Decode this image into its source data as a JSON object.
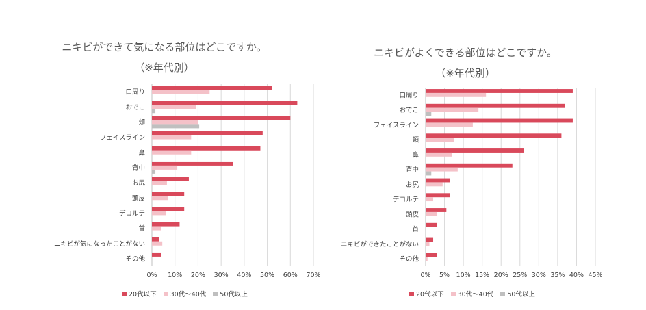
{
  "chart_data": [
    {
      "type": "bar",
      "orientation": "horizontal",
      "title": "ニキビができて気になる部位はどこですか。",
      "subtitle": "（※年代別）",
      "categories": [
        "口周り",
        "おでこ",
        "頬",
        "フェイスライン",
        "鼻",
        "背中",
        "お尻",
        "頭皮",
        "デコルテ",
        "首",
        "ニキビが気になったことがない",
        "その他"
      ],
      "series": [
        {
          "name": "20代以下",
          "color": "#d9495b",
          "values": [
            52,
            63,
            60,
            48,
            47,
            35,
            16,
            14,
            14,
            12,
            3,
            4
          ]
        },
        {
          "name": "30代～40代",
          "color": "#f4c1c8",
          "values": [
            25,
            19,
            20,
            17,
            17,
            11,
            6.5,
            7,
            6,
            4,
            4.5,
            0
          ]
        },
        {
          "name": "50代以上",
          "color": "#bfbfbf",
          "values": [
            0,
            1.5,
            20.5,
            0,
            0,
            1.5,
            0,
            0,
            0,
            0,
            0,
            0
          ]
        }
      ],
      "xticks": [
        "0%",
        "10%",
        "20%",
        "30%",
        "40%",
        "50%",
        "60%",
        "70%"
      ],
      "xlim": [
        0,
        70
      ],
      "grid": true,
      "legend": "bottom"
    },
    {
      "type": "bar",
      "orientation": "horizontal",
      "title": "ニキビがよくできる部位はどこですか。",
      "subtitle": "（※年代別）",
      "categories": [
        "口周り",
        "おでこ",
        "フェイスライン",
        "頬",
        "鼻",
        "背中",
        "お尻",
        "デコルテ",
        "頭皮",
        "首",
        "ニキビができたことがない",
        "その他"
      ],
      "series": [
        {
          "name": "20代以下",
          "color": "#d9495b",
          "values": [
            39,
            37,
            39,
            36,
            26,
            23,
            6.5,
            6.5,
            5.5,
            3,
            2,
            3
          ]
        },
        {
          "name": "30代～40代",
          "color": "#f4c1c8",
          "values": [
            16,
            14,
            12.5,
            7.5,
            7,
            8.5,
            4.5,
            2,
            3,
            0,
            1,
            0.5
          ]
        },
        {
          "name": "50代以上",
          "color": "#bfbfbf",
          "values": [
            0,
            1.5,
            0,
            0,
            0,
            1.5,
            0,
            0,
            0,
            0,
            0,
            0
          ]
        }
      ],
      "xticks": [
        "0%",
        "5%",
        "10%",
        "15%",
        "20%",
        "25%",
        "30%",
        "35%",
        "40%",
        "45%"
      ],
      "xlim": [
        0,
        45
      ],
      "grid": true,
      "legend": "bottom"
    }
  ]
}
